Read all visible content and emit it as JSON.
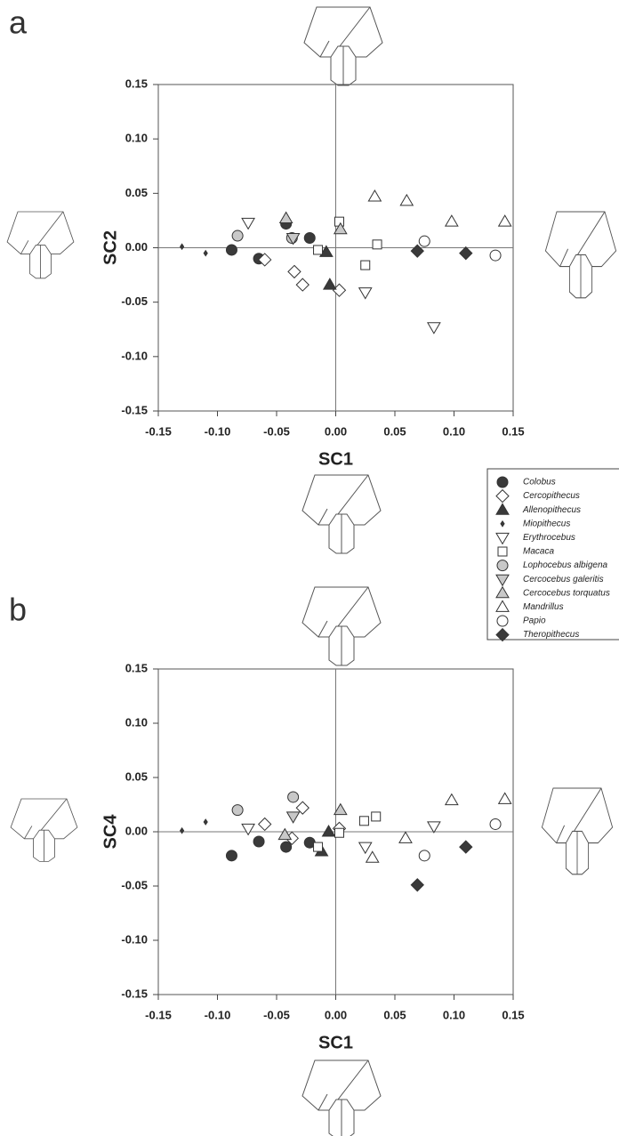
{
  "chart_data": [
    {
      "type": "scatter",
      "label": "a",
      "x_label": "SC1",
      "y_label": "SC2",
      "xlim": [
        -0.15,
        0.15
      ],
      "ylim": [
        -0.15,
        0.15
      ],
      "xticks": [
        -0.15,
        {
          "value": -0.1,
          "label": "-0.10"
        },
        -0.05,
        {
          "value": 0,
          "label": "0.00"
        },
        0.05,
        {
          "value": 0.1,
          "label": "0.10"
        },
        0.15
      ],
      "yticks": [
        -0.15,
        {
          "value": -0.1,
          "label": "-0.10"
        },
        -0.05,
        {
          "value": 0,
          "label": "0.00"
        },
        0.05,
        {
          "value": 0.1,
          "label": "0.10"
        },
        0.15
      ],
      "series": [
        {
          "name": "Colobus",
          "marker": "circle",
          "color": "#3a3a3a",
          "x": [
            -0.088,
            -0.065,
            -0.042,
            -0.022
          ],
          "values": [
            -0.002,
            -0.01,
            0.022,
            0.009
          ]
        },
        {
          "name": "Cercopithecus",
          "marker": "diamond",
          "color": "#ffffff",
          "x": [
            -0.06,
            -0.035,
            -0.028,
            0.003
          ],
          "values": [
            -0.011,
            -0.022,
            -0.034,
            -0.039
          ]
        },
        {
          "name": "Allenopithecus",
          "marker": "tri-up",
          "color": "#3a3a3a",
          "x": [
            -0.008,
            -0.005
          ],
          "values": [
            -0.004,
            -0.034
          ]
        },
        {
          "name": "Miopithecus",
          "marker": "small-diamond",
          "color": "#3a3a3a",
          "x": [
            -0.13,
            -0.11
          ],
          "values": [
            0.001,
            -0.005
          ]
        },
        {
          "name": "Erythrocebus",
          "marker": "tri-down",
          "color": "#ffffff",
          "x": [
            -0.074,
            0.025,
            0.083
          ],
          "values": [
            0.023,
            -0.041,
            -0.073
          ]
        },
        {
          "name": "Macaca",
          "marker": "square",
          "color": "#ffffff",
          "x": [
            -0.015,
            0.003,
            0.025,
            0.035
          ],
          "values": [
            -0.002,
            0.024,
            -0.016,
            0.003
          ]
        },
        {
          "name": "Lophocebus albigena",
          "marker": "circle",
          "color": "#c8c8c8",
          "x": [
            -0.083,
            -0.037
          ],
          "values": [
            0.011,
            0.009
          ]
        },
        {
          "name": "Cercocebus galeritis",
          "marker": "tri-down",
          "color": "#c8c8c8",
          "x": [
            -0.036
          ],
          "values": [
            0.009
          ]
        },
        {
          "name": "Cercocebus torquatus",
          "marker": "tri-up",
          "color": "#c8c8c8",
          "x": [
            -0.042,
            0.004
          ],
          "values": [
            0.027,
            0.017
          ]
        },
        {
          "name": "Mandrillus",
          "marker": "tri-up",
          "color": "#ffffff",
          "x": [
            0.033,
            0.06,
            0.098,
            0.143
          ],
          "values": [
            0.047,
            0.043,
            0.024,
            0.024
          ]
        },
        {
          "name": "Papio",
          "marker": "circle",
          "color": "#ffffff",
          "x": [
            0.075,
            0.135
          ],
          "values": [
            0.006,
            -0.007
          ]
        },
        {
          "name": "Theropithecus",
          "marker": "diamond",
          "color": "#3a3a3a",
          "x": [
            0.069,
            0.11
          ],
          "values": [
            -0.003,
            -0.005
          ]
        }
      ]
    },
    {
      "type": "scatter",
      "label": "b",
      "x_label": "SC1",
      "y_label": "SC4",
      "xlim": [
        -0.15,
        0.15
      ],
      "ylim": [
        -0.15,
        0.15
      ],
      "xticks": [
        -0.15,
        {
          "value": -0.1,
          "label": "-0.10"
        },
        -0.05,
        {
          "value": 0,
          "label": "0.00"
        },
        0.05,
        {
          "value": 0.1,
          "label": "0.10"
        },
        0.15
      ],
      "yticks": [
        -0.15,
        {
          "value": -0.1,
          "label": "-0.10"
        },
        -0.05,
        {
          "value": 0,
          "label": "0.00"
        },
        0.05,
        {
          "value": 0.1,
          "label": "0.10"
        },
        0.15
      ],
      "series": [
        {
          "marker": "circle",
          "color": "#3a3a3a",
          "x": [
            -0.088,
            -0.065,
            -0.042,
            -0.022
          ],
          "values": [
            -0.022,
            -0.009,
            -0.014,
            -0.01
          ]
        },
        {
          "marker": "diamond",
          "color": "#ffffff",
          "x": [
            -0.06,
            -0.037,
            -0.028,
            0.003
          ],
          "values": [
            0.007,
            -0.006,
            0.022,
            0.003
          ]
        },
        {
          "marker": "tri-up",
          "color": "#3a3a3a",
          "x": [
            -0.012,
            -0.006
          ],
          "values": [
            -0.018,
            0.0
          ]
        },
        {
          "marker": "small-diamond",
          "color": "#3a3a3a",
          "x": [
            -0.13,
            -0.11
          ],
          "values": [
            0.001,
            0.009
          ]
        },
        {
          "marker": "tri-down",
          "color": "#ffffff",
          "x": [
            -0.074,
            0.025,
            0.083
          ],
          "values": [
            0.003,
            -0.014,
            0.005
          ]
        },
        {
          "marker": "square",
          "color": "#ffffff",
          "x": [
            -0.015,
            0.003,
            0.024,
            0.034
          ],
          "values": [
            -0.014,
            -0.001,
            0.01,
            0.014
          ]
        },
        {
          "marker": "circle",
          "color": "#c8c8c8",
          "x": [
            -0.083,
            -0.036
          ],
          "values": [
            0.02,
            0.032
          ]
        },
        {
          "marker": "tri-down",
          "color": "#c8c8c8",
          "x": [
            -0.036
          ],
          "values": [
            0.014
          ]
        },
        {
          "marker": "tri-up",
          "color": "#c8c8c8",
          "x": [
            -0.043,
            0.004
          ],
          "values": [
            -0.003,
            0.02
          ]
        },
        {
          "marker": "tri-up",
          "color": "#ffffff",
          "x": [
            0.031,
            0.059,
            0.098,
            0.143
          ],
          "values": [
            -0.024,
            -0.006,
            0.029,
            0.03
          ]
        },
        {
          "marker": "circle",
          "color": "#ffffff",
          "x": [
            0.075,
            0.135
          ],
          "values": [
            -0.022,
            0.007
          ]
        },
        {
          "marker": "diamond",
          "color": "#3a3a3a",
          "x": [
            0.069,
            0.11
          ],
          "values": [
            -0.049,
            -0.014
          ]
        }
      ]
    }
  ]
}
